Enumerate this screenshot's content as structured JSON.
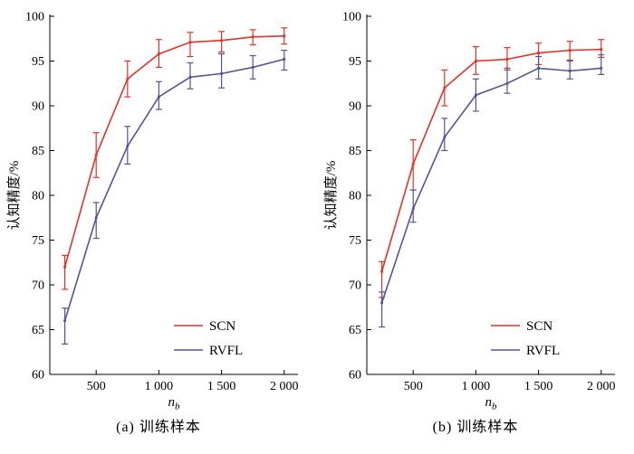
{
  "figure": {
    "caption_a": "(a) 训练样本",
    "caption_b": "(b) 训练样本"
  },
  "chart_data": [
    {
      "type": "line",
      "title": "",
      "xlabel_main": "n",
      "xlabel_sub": "b",
      "ylabel": "认知精度/%",
      "caption": "(a) 训练样本",
      "xlim": [
        130,
        2110
      ],
      "ylim": [
        60,
        100
      ],
      "xticks": [
        500,
        1000,
        1500,
        2000
      ],
      "xtick_labels": [
        "500",
        "1 000",
        "1 500",
        "2 000"
      ],
      "yticks": [
        60,
        65,
        70,
        75,
        80,
        85,
        90,
        95,
        100
      ],
      "legend_position": "lower right",
      "grid": false,
      "x": [
        250,
        500,
        750,
        1000,
        1250,
        1500,
        1750,
        2000
      ],
      "series": [
        {
          "name": "SCN",
          "color": "#e6312a",
          "values": [
            72.0,
            84.5,
            93.0,
            95.8,
            97.1,
            97.3,
            97.7,
            97.8
          ],
          "err_low": [
            69.5,
            82.0,
            91.0,
            94.3,
            95.5,
            96.0,
            96.8,
            96.9
          ],
          "err_high": [
            73.3,
            87.0,
            95.0,
            97.4,
            98.2,
            98.3,
            98.5,
            98.7
          ]
        },
        {
          "name": "RVFL",
          "color": "#54549e",
          "values": [
            66.0,
            77.5,
            85.5,
            91.0,
            93.2,
            93.6,
            94.3,
            95.2
          ],
          "err_low": [
            63.4,
            75.2,
            83.5,
            89.6,
            91.9,
            92.0,
            93.0,
            94.0
          ],
          "err_high": [
            67.4,
            79.2,
            87.7,
            92.7,
            94.8,
            95.8,
            95.6,
            96.2
          ]
        }
      ]
    },
    {
      "type": "line",
      "title": "",
      "xlabel_main": "n",
      "xlabel_sub": "b",
      "ylabel": "认知精度/%",
      "caption": "(b) 训练样本",
      "xlim": [
        130,
        2110
      ],
      "ylim": [
        60,
        100
      ],
      "xticks": [
        500,
        1000,
        1500,
        2000
      ],
      "xtick_labels": [
        "500",
        "1 000",
        "1 500",
        "2 000"
      ],
      "yticks": [
        60,
        65,
        70,
        75,
        80,
        85,
        90,
        95,
        100
      ],
      "legend_position": "lower right",
      "grid": false,
      "x": [
        250,
        500,
        750,
        1000,
        1250,
        1500,
        1750,
        2000
      ],
      "series": [
        {
          "name": "SCN",
          "color": "#e6312a",
          "values": [
            71.5,
            83.5,
            92.0,
            95.0,
            95.2,
            95.9,
            96.2,
            96.3
          ],
          "err_low": [
            68.6,
            80.6,
            90.0,
            93.5,
            94.0,
            94.6,
            95.0,
            95.4
          ],
          "err_high": [
            72.6,
            86.2,
            94.0,
            96.6,
            96.5,
            97.0,
            97.2,
            97.4
          ]
        },
        {
          "name": "RVFL",
          "color": "#54549e",
          "values": [
            68.0,
            78.5,
            86.5,
            91.2,
            92.5,
            94.2,
            93.9,
            94.2
          ],
          "err_low": [
            65.3,
            77.0,
            85.0,
            89.4,
            91.4,
            93.0,
            93.0,
            93.5
          ],
          "err_high": [
            69.2,
            80.6,
            88.6,
            93.0,
            94.2,
            95.5,
            95.1,
            95.7
          ]
        }
      ]
    }
  ]
}
